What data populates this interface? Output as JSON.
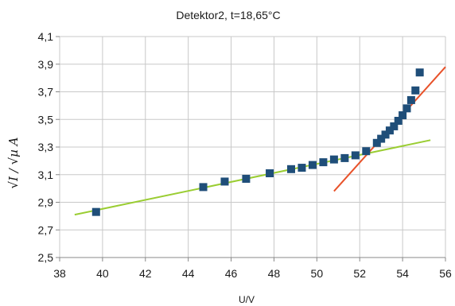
{
  "chart_data": {
    "type": "scatter",
    "title": "Detektor2, t=18,65°C",
    "xlabel": "U/V",
    "ylabel": "√I / √µ A",
    "xlim": [
      38,
      56
    ],
    "ylim": [
      2.5,
      4.1
    ],
    "x_ticks": [
      "38",
      "40",
      "42",
      "44",
      "46",
      "48",
      "50",
      "52",
      "54",
      "56"
    ],
    "y_ticks": [
      "2,5",
      "2,7",
      "2,9",
      "3,1",
      "3,3",
      "3,5",
      "3,7",
      "3,9",
      "4,1"
    ],
    "grid": true,
    "marker_color": "#1f4e79",
    "series": [
      {
        "x": [
          39.7,
          44.7,
          45.7,
          46.7,
          47.8,
          48.8,
          49.3,
          49.8,
          50.3,
          50.8,
          51.3,
          51.8,
          52.3,
          52.8,
          53.0,
          53.2,
          53.4,
          53.6,
          53.8,
          54.0,
          54.2,
          54.4,
          54.6,
          54.8
        ],
        "y": [
          2.83,
          3.01,
          3.05,
          3.07,
          3.11,
          3.14,
          3.15,
          3.17,
          3.19,
          3.21,
          3.22,
          3.24,
          3.27,
          3.33,
          3.36,
          3.39,
          3.42,
          3.45,
          3.49,
          3.53,
          3.58,
          3.64,
          3.71,
          3.84
        ]
      }
    ],
    "lines": [
      {
        "x": [
          38.7,
          55.3
        ],
        "y": [
          2.81,
          3.35
        ],
        "color": "#9acd32"
      },
      {
        "x": [
          50.8,
          56.0
        ],
        "y": [
          2.98,
          3.88
        ],
        "color": "#e8522a"
      }
    ]
  }
}
